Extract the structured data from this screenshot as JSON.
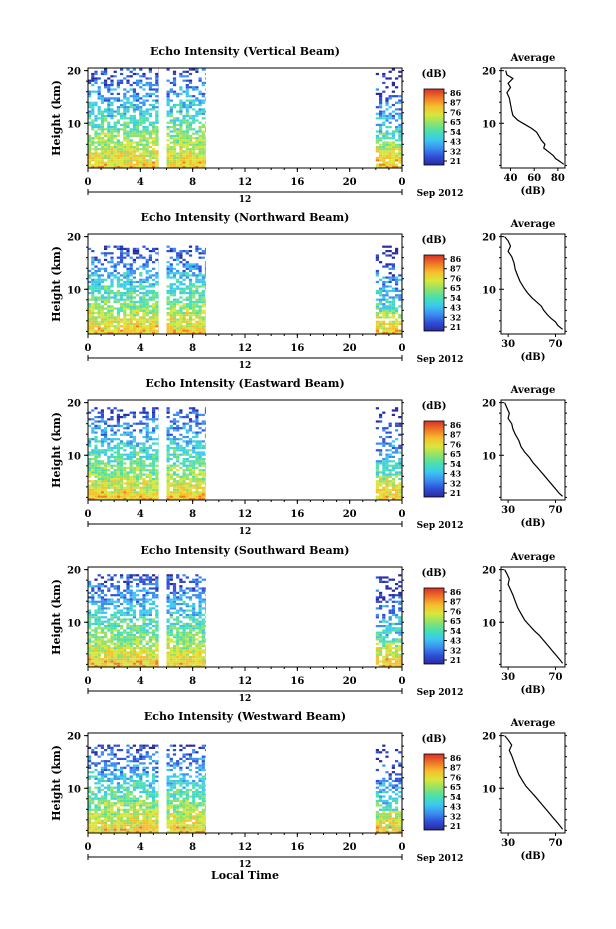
{
  "chart_data": [
    {
      "type": "heatmap",
      "title": "Echo Intensity (Vertical Beam)",
      "ylabel": "Height (km)",
      "y_ticks": [
        "20",
        "10"
      ],
      "x_ticks": [
        "0",
        "4",
        "8",
        "12",
        "16",
        "20",
        "0"
      ],
      "date_day": "12",
      "date_label": "Sep 2012",
      "data_segments_hours": [
        [
          0,
          5.4
        ],
        [
          6.0,
          9.0
        ],
        [
          22.0,
          24.0
        ]
      ],
      "colorbar_unit": "(dB)",
      "colorbar_labels": [
        "86",
        "87",
        "76",
        "65",
        "54",
        "43",
        "32",
        "21"
      ],
      "profile": {
        "title": "Average",
        "y_ticks": [
          "20",
          "10"
        ],
        "x_ticks": [
          "40",
          "60",
          "80"
        ],
        "xlabel": "(dB)",
        "xlim": [
          32,
          86
        ],
        "points": [
          [
            36,
            20
          ],
          [
            37,
            19.2
          ],
          [
            42,
            18.5
          ],
          [
            38,
            17.6
          ],
          [
            40,
            16.8
          ],
          [
            37,
            15.8
          ],
          [
            39,
            14.8
          ],
          [
            40,
            13.6
          ],
          [
            41,
            12.4
          ],
          [
            42,
            11.5
          ],
          [
            46,
            10.6
          ],
          [
            52,
            9.8
          ],
          [
            58,
            9.0
          ],
          [
            62,
            8.3
          ],
          [
            64,
            7.6
          ],
          [
            66,
            6.8
          ],
          [
            69,
            6.0
          ],
          [
            68,
            5.3
          ],
          [
            72,
            4.6
          ],
          [
            76,
            3.9
          ],
          [
            78,
            3.3
          ],
          [
            82,
            2.7
          ],
          [
            85,
            2.2
          ]
        ]
      },
      "fill": {
        "yTop": 20,
        "densityTop": 0.3,
        "densityBottom": 1.0
      }
    },
    {
      "type": "heatmap",
      "title": "Echo Intensity (Northward Beam)",
      "ylabel": "Height (km)",
      "y_ticks": [
        "20",
        "10"
      ],
      "x_ticks": [
        "0",
        "4",
        "8",
        "12",
        "16",
        "20",
        "0"
      ],
      "date_day": "12",
      "date_label": "Sep 2012",
      "data_segments_hours": [
        [
          0,
          5.4
        ],
        [
          6.0,
          9.0
        ],
        [
          22.0,
          24.0
        ]
      ],
      "colorbar_unit": "(dB)",
      "colorbar_labels": [
        "86",
        "87",
        "76",
        "65",
        "54",
        "43",
        "32",
        "21"
      ],
      "profile": {
        "title": "Average",
        "y_ticks": [
          "20",
          "10"
        ],
        "x_ticks": [
          "30",
          "70"
        ],
        "xlabel": "(dB)",
        "xlim": [
          24,
          78
        ],
        "points": [
          [
            27,
            20
          ],
          [
            30,
            19.2
          ],
          [
            32,
            18.2
          ],
          [
            30,
            17.2
          ],
          [
            33,
            16.2
          ],
          [
            35,
            15.0
          ],
          [
            36,
            13.8
          ],
          [
            38,
            12.6
          ],
          [
            40,
            11.5
          ],
          [
            43,
            10.4
          ],
          [
            46,
            9.4
          ],
          [
            50,
            8.4
          ],
          [
            54,
            7.6
          ],
          [
            58,
            6.8
          ],
          [
            60,
            6.0
          ],
          [
            63,
            5.2
          ],
          [
            66,
            4.5
          ],
          [
            70,
            3.8
          ],
          [
            72,
            3.1
          ],
          [
            76,
            2.4
          ]
        ]
      },
      "fill": {
        "yTop": 18,
        "densityTop": 0.35,
        "densityBottom": 1.0
      }
    },
    {
      "type": "heatmap",
      "title": "Echo Intensity (Eastward Beam)",
      "ylabel": "Height (km)",
      "y_ticks": [
        "20",
        "10"
      ],
      "x_ticks": [
        "0",
        "4",
        "8",
        "12",
        "16",
        "20",
        "0"
      ],
      "date_day": "12",
      "date_label": "Sep 2012",
      "data_segments_hours": [
        [
          0,
          5.4
        ],
        [
          6.0,
          9.0
        ],
        [
          22.0,
          24.0
        ]
      ],
      "colorbar_unit": "(dB)",
      "colorbar_labels": [
        "86",
        "87",
        "76",
        "65",
        "54",
        "43",
        "32",
        "21"
      ],
      "profile": {
        "title": "Average",
        "y_ticks": [
          "20",
          "10"
        ],
        "x_ticks": [
          "30",
          "70"
        ],
        "xlabel": "(dB)",
        "xlim": [
          24,
          78
        ],
        "points": [
          [
            27,
            20
          ],
          [
            29,
            19.0
          ],
          [
            31,
            18.0
          ],
          [
            30,
            17.0
          ],
          [
            33,
            16.0
          ],
          [
            34,
            15.0
          ],
          [
            36,
            14.0
          ],
          [
            39,
            12.8
          ],
          [
            41,
            11.6
          ],
          [
            44,
            10.6
          ],
          [
            48,
            9.6
          ],
          [
            51,
            8.6
          ],
          [
            55,
            7.6
          ],
          [
            58,
            6.8
          ],
          [
            61,
            6.0
          ],
          [
            64,
            5.2
          ],
          [
            67,
            4.4
          ],
          [
            70,
            3.6
          ],
          [
            73,
            2.8
          ],
          [
            76,
            2.2
          ]
        ]
      },
      "fill": {
        "yTop": 19,
        "densityTop": 0.35,
        "densityBottom": 1.0
      }
    },
    {
      "type": "heatmap",
      "title": "Echo Intensity (Southward Beam)",
      "ylabel": "Height (km)",
      "y_ticks": [
        "20",
        "10"
      ],
      "x_ticks": [
        "0",
        "4",
        "8",
        "12",
        "16",
        "20",
        "0"
      ],
      "date_day": "12",
      "date_label": "Sep 2012",
      "data_segments_hours": [
        [
          0,
          5.4
        ],
        [
          6.0,
          9.0
        ],
        [
          22.0,
          24.0
        ]
      ],
      "colorbar_unit": "(dB)",
      "colorbar_labels": [
        "86",
        "87",
        "76",
        "65",
        "54",
        "43",
        "32",
        "21"
      ],
      "profile": {
        "title": "Average",
        "y_ticks": [
          "20",
          "10"
        ],
        "x_ticks": [
          "30",
          "70"
        ],
        "xlabel": "(dB)",
        "xlim": [
          24,
          78
        ],
        "points": [
          [
            27,
            20
          ],
          [
            29,
            19.2
          ],
          [
            31,
            18.2
          ],
          [
            30,
            17.2
          ],
          [
            32,
            16.2
          ],
          [
            34,
            15.2
          ],
          [
            36,
            14.0
          ],
          [
            38,
            12.8
          ],
          [
            41,
            11.6
          ],
          [
            44,
            10.4
          ],
          [
            48,
            9.4
          ],
          [
            52,
            8.4
          ],
          [
            56,
            7.6
          ],
          [
            59,
            6.8
          ],
          [
            62,
            6.0
          ],
          [
            65,
            5.2
          ],
          [
            68,
            4.4
          ],
          [
            71,
            3.6
          ],
          [
            74,
            2.8
          ],
          [
            76,
            2.2
          ]
        ]
      },
      "fill": {
        "yTop": 19,
        "densityTop": 0.4,
        "densityBottom": 1.0
      }
    },
    {
      "type": "heatmap",
      "title": "Echo Intensity (Westward Beam)",
      "ylabel": "Height (km)",
      "y_ticks": [
        "20",
        "10"
      ],
      "x_ticks": [
        "0",
        "4",
        "8",
        "12",
        "16",
        "20",
        "0"
      ],
      "date_day": "12",
      "date_label": "Sep 2012",
      "xlabel": "Local Time",
      "data_segments_hours": [
        [
          0,
          5.4
        ],
        [
          6.0,
          9.0
        ],
        [
          22.0,
          24.0
        ]
      ],
      "colorbar_unit": "(dB)",
      "colorbar_labels": [
        "86",
        "87",
        "76",
        "65",
        "54",
        "43",
        "32",
        "21"
      ],
      "profile": {
        "title": "Average",
        "y_ticks": [
          "20",
          "10"
        ],
        "x_ticks": [
          "30",
          "70"
        ],
        "xlabel": "(dB)",
        "xlim": [
          24,
          78
        ],
        "points": [
          [
            27,
            20
          ],
          [
            30,
            19.2
          ],
          [
            33,
            18.2
          ],
          [
            31,
            17.2
          ],
          [
            33,
            16.2
          ],
          [
            35,
            15.0
          ],
          [
            37,
            13.8
          ],
          [
            39,
            12.6
          ],
          [
            42,
            11.5
          ],
          [
            45,
            10.4
          ],
          [
            49,
            9.4
          ],
          [
            53,
            8.4
          ],
          [
            56,
            7.6
          ],
          [
            59,
            6.8
          ],
          [
            62,
            6.0
          ],
          [
            65,
            5.2
          ],
          [
            68,
            4.4
          ],
          [
            71,
            3.6
          ],
          [
            74,
            2.8
          ],
          [
            76,
            2.2
          ]
        ]
      },
      "fill": {
        "yTop": 18,
        "densityTop": 0.35,
        "densityBottom": 1.0
      }
    }
  ],
  "colors": {
    "colormap": [
      "#2a2aa0",
      "#2f4fd6",
      "#3a8ef0",
      "#3cc8ee",
      "#48e0b0",
      "#8ee26a",
      "#d8e63c",
      "#f5c02e",
      "#f07a26",
      "#d8302a"
    ]
  }
}
